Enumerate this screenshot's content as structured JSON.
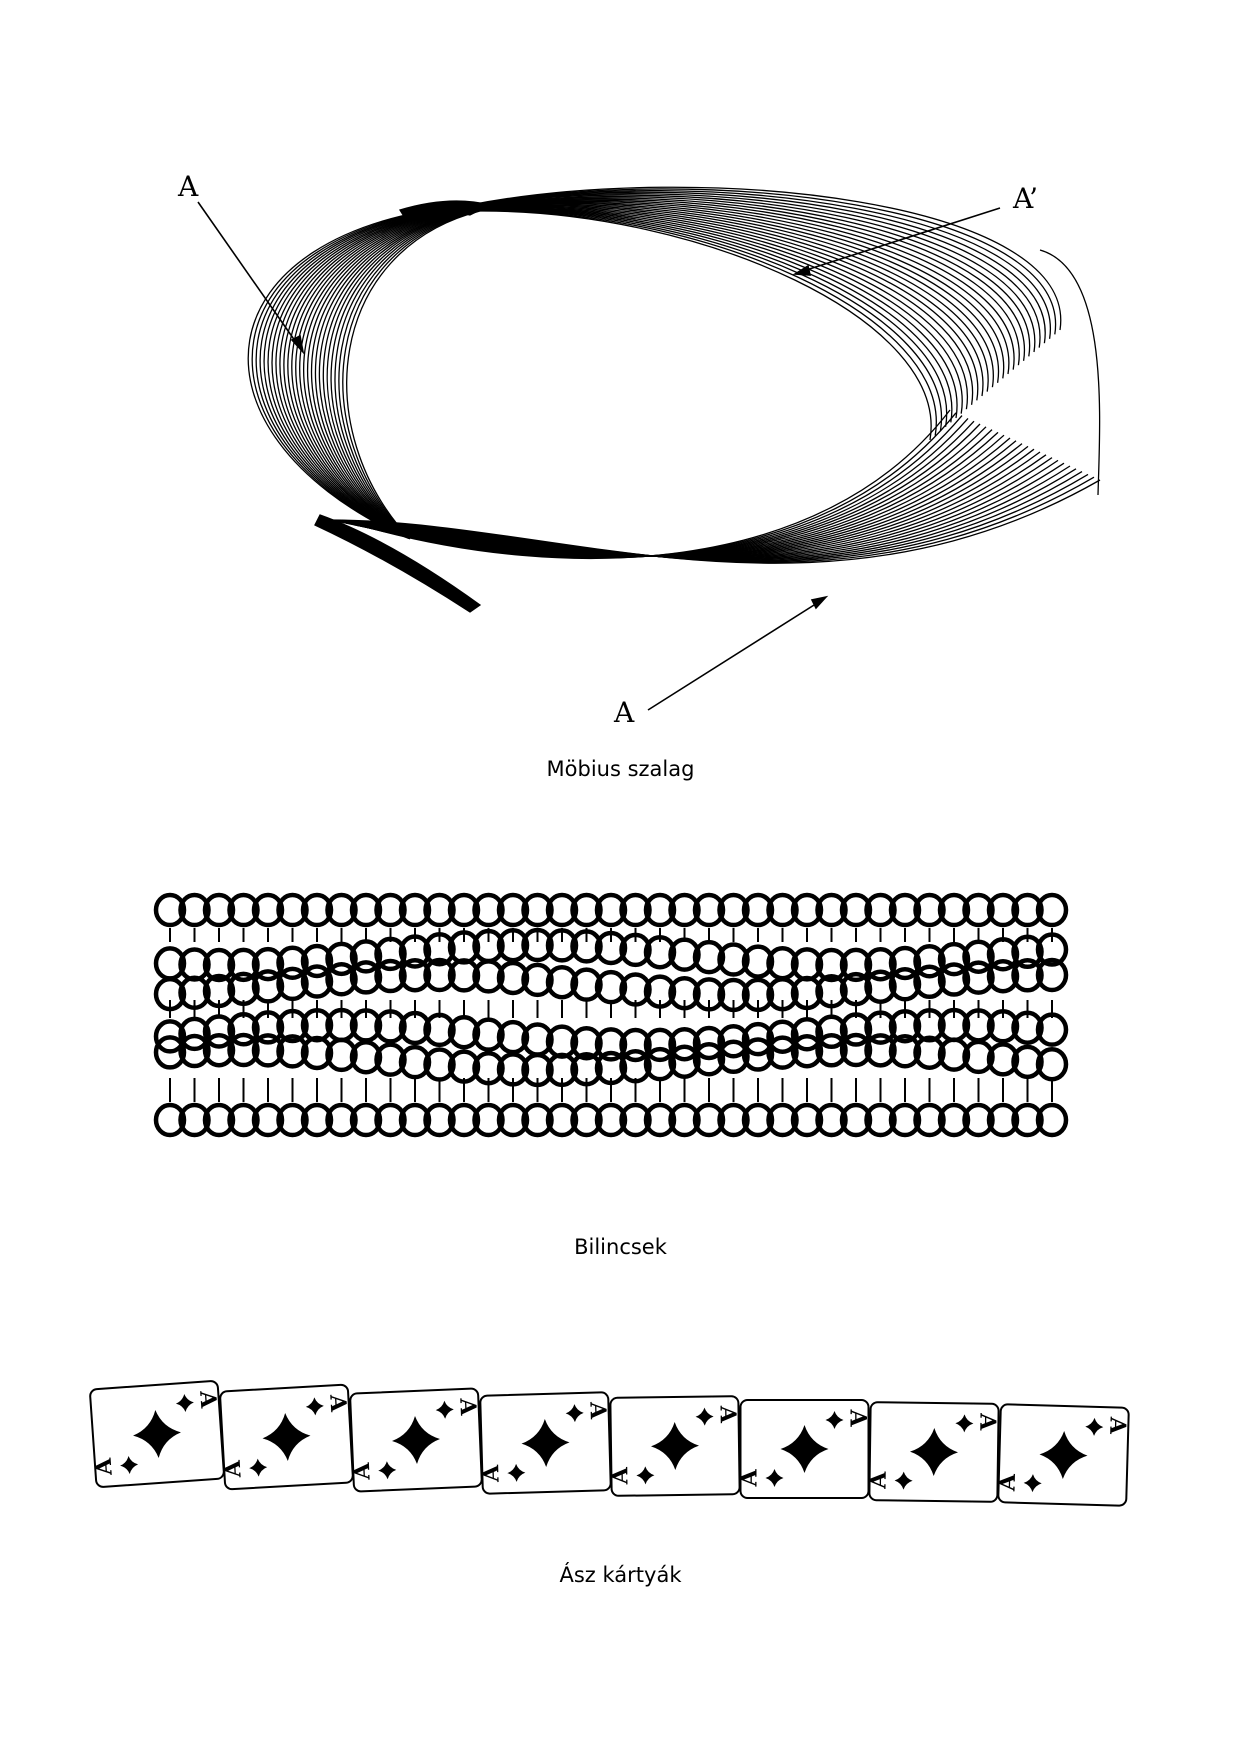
{
  "figures": [
    {
      "id": "mobius",
      "caption": "Möbius szalag",
      "labels": {
        "a_top": "A",
        "a_prime": "A’",
        "a_bottom": "A"
      }
    },
    {
      "id": "handcuffs",
      "caption": "Bilincsek"
    },
    {
      "id": "cards",
      "caption": "Ász kártyák",
      "card_rank": "A",
      "card_count": 8
    }
  ]
}
